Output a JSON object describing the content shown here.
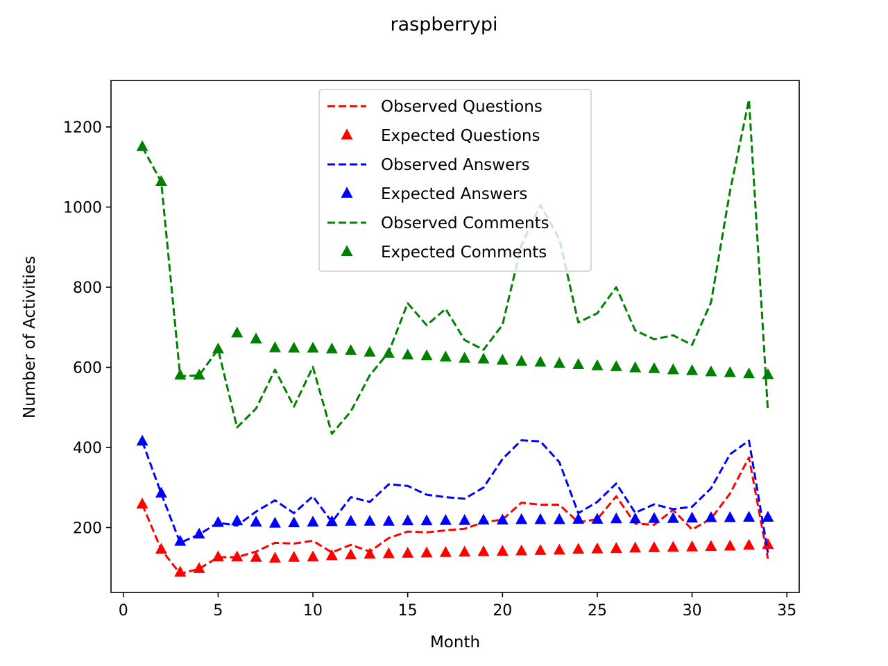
{
  "chart_data": {
    "type": "line",
    "title": "raspberrypi",
    "xlabel": "Month",
    "ylabel": "Number of Activities",
    "xlim": [
      -0.65,
      35.65
    ],
    "ylim": [
      38,
      1316
    ],
    "xticks": [
      0,
      5,
      10,
      15,
      20,
      25,
      30,
      35
    ],
    "yticks": [
      200,
      400,
      600,
      800,
      1000,
      1200
    ],
    "legend_position": "upper center",
    "grid": false,
    "x": [
      1,
      2,
      3,
      4,
      5,
      6,
      7,
      8,
      9,
      10,
      11,
      12,
      13,
      14,
      15,
      16,
      17,
      18,
      19,
      20,
      21,
      22,
      23,
      24,
      25,
      26,
      27,
      28,
      29,
      30,
      31,
      32,
      33,
      34
    ],
    "series": [
      {
        "name": "Observed Questions",
        "style": "dashed-line",
        "color": "#ff0000",
        "values": [
          258,
          145,
          85,
          97,
          126,
          126,
          140,
          162,
          160,
          167,
          138,
          157,
          140,
          174,
          190,
          188,
          193,
          197,
          213,
          220,
          262,
          257,
          257,
          213,
          221,
          278,
          210,
          207,
          244,
          195,
          222,
          285,
          375,
          122
        ]
      },
      {
        "name": "Expected Questions",
        "style": "triangle-marker",
        "color": "#ff0000",
        "values": [
          258,
          145,
          88,
          97,
          126,
          126,
          125,
          123,
          125,
          126,
          129,
          131,
          133,
          134,
          135,
          136,
          137,
          138,
          139,
          140,
          141,
          142,
          143,
          145,
          146,
          147,
          148,
          149,
          150,
          151,
          152,
          153,
          155,
          157
        ]
      },
      {
        "name": "Observed Answers",
        "style": "dashed-line",
        "color": "#0000ff",
        "values": [
          415,
          285,
          162,
          183,
          212,
          205,
          240,
          268,
          236,
          278,
          214,
          276,
          264,
          308,
          304,
          282,
          276,
          272,
          300,
          371,
          418,
          415,
          363,
          236,
          264,
          310,
          237,
          258,
          246,
          252,
          298,
          383,
          417,
          137
        ]
      },
      {
        "name": "Expected Answers",
        "style": "triangle-marker",
        "color": "#0000ff",
        "values": [
          415,
          285,
          165,
          183,
          212,
          216,
          213,
          210,
          211,
          213,
          214,
          215,
          215,
          215,
          216,
          216,
          217,
          217,
          218,
          218,
          219,
          219,
          219,
          220,
          220,
          221,
          221,
          222,
          222,
          223,
          224,
          224,
          225,
          225
        ]
      },
      {
        "name": "Observed Comments",
        "style": "dashed-line",
        "color": "#008000",
        "values": [
          1150,
          1063,
          578,
          580,
          645,
          450,
          497,
          594,
          502,
          601,
          434,
          490,
          580,
          638,
          760,
          705,
          746,
          668,
          644,
          706,
          905,
          1005,
          920,
          712,
          735,
          800,
          692,
          670,
          680,
          656,
          762,
          1040,
          1268,
          490
        ]
      },
      {
        "name": "Expected Comments",
        "style": "triangle-marker",
        "color": "#008000",
        "values": [
          1150,
          1063,
          580,
          580,
          645,
          685,
          670,
          648,
          647,
          647,
          645,
          641,
          637,
          634,
          630,
          628,
          625,
          622,
          620,
          617,
          614,
          612,
          609,
          606,
          603,
          601,
          598,
          596,
          593,
          591,
          588,
          586,
          583,
          581
        ]
      }
    ]
  }
}
